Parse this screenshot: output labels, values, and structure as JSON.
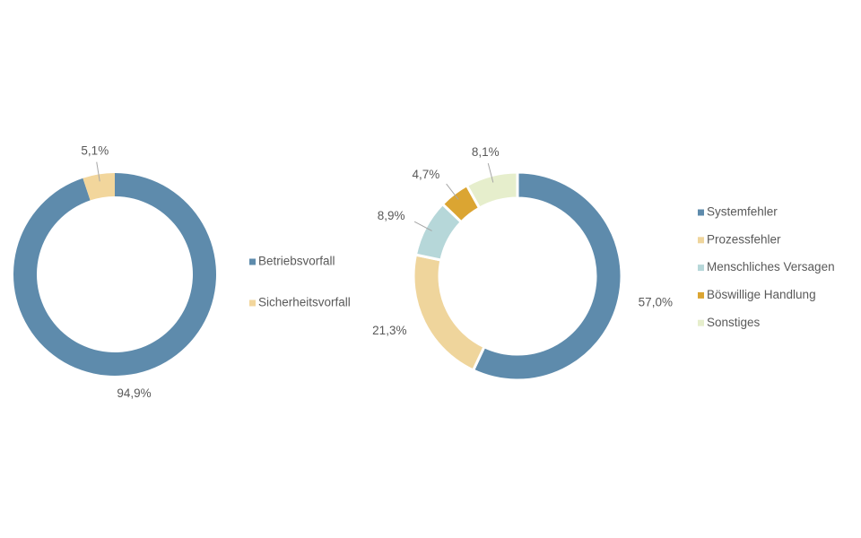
{
  "chart_data": [
    {
      "type": "donut",
      "categories": [
        "Betriebsvorfall",
        "Sicherheitsvorfall"
      ],
      "values": [
        94.9,
        5.1
      ],
      "value_labels": [
        "94,9%",
        "5,1%"
      ],
      "colors": [
        "#5e8bac",
        "#f2d69c"
      ],
      "legend": "right"
    },
    {
      "type": "donut",
      "categories": [
        "Systemfehler",
        "Prozessfehler",
        "Menschliches Versagen",
        "Böswillige Handlung",
        "Sonstiges"
      ],
      "values": [
        57.0,
        21.3,
        8.9,
        4.7,
        8.1
      ],
      "value_labels": [
        "57,0%",
        "21,3%",
        "8,9%",
        "4,7%",
        "8,1%"
      ],
      "colors": [
        "#5e8bac",
        "#efd59c",
        "#b6d7d9",
        "#dba532",
        "#e6eecc"
      ],
      "legend": "right"
    }
  ]
}
